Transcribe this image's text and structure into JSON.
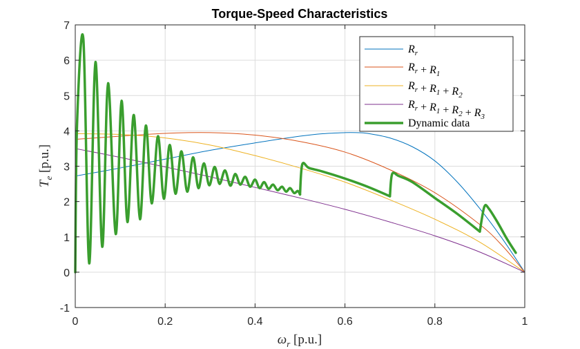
{
  "chart_data": {
    "type": "line",
    "title": "Torque-Speed Characteristics",
    "xlabel": {
      "symbol": "ω",
      "sub": "r",
      "unit": "[p.u.]"
    },
    "ylabel": {
      "symbol": "T",
      "sub": "e",
      "unit": "[p.u.]"
    },
    "xlim": [
      0,
      1
    ],
    "ylim": [
      -1,
      7
    ],
    "x_ticks": [
      0,
      0.2,
      0.4,
      0.6,
      0.8,
      1
    ],
    "x_tick_labels": [
      "0",
      "0.2",
      "0.4",
      "0.6",
      "0.8",
      "1"
    ],
    "y_ticks": [
      -1,
      0,
      1,
      2,
      3,
      4,
      5,
      6,
      7
    ],
    "y_tick_labels": [
      "-1",
      "0",
      "1",
      "2",
      "3",
      "4",
      "5",
      "6",
      "7"
    ],
    "grid": true,
    "legend_position": "top-right",
    "series": [
      {
        "name": "R_r",
        "legend_parts": [
          [
            "R",
            "r"
          ]
        ],
        "color": "#0072BD",
        "x": [
          0,
          0.1,
          0.2,
          0.3,
          0.4,
          0.5,
          0.55,
          0.6,
          0.625,
          0.65,
          0.7,
          0.75,
          0.8,
          0.85,
          0.9,
          0.95,
          1.0
        ],
        "y": [
          2.72,
          2.95,
          3.2,
          3.45,
          3.66,
          3.85,
          3.92,
          3.95,
          3.95,
          3.93,
          3.8,
          3.55,
          3.15,
          2.55,
          1.8,
          0.95,
          0
        ]
      },
      {
        "name": "R_r + R_1",
        "legend_parts": [
          [
            "R",
            "r"
          ],
          [
            "R",
            "1"
          ]
        ],
        "color": "#D95319",
        "x": [
          0,
          0.1,
          0.2,
          0.3,
          0.4,
          0.5,
          0.6,
          0.7,
          0.8,
          0.9,
          0.95,
          1.0
        ],
        "y": [
          3.76,
          3.85,
          3.93,
          3.95,
          3.88,
          3.7,
          3.4,
          2.9,
          2.25,
          1.35,
          0.75,
          0
        ]
      },
      {
        "name": "R_r + R_1 + R_2",
        "legend_parts": [
          [
            "R",
            "r"
          ],
          [
            "R",
            "1"
          ],
          [
            "R",
            "2"
          ]
        ],
        "color": "#EDB120",
        "x": [
          0,
          0.1,
          0.2,
          0.3,
          0.4,
          0.5,
          0.6,
          0.7,
          0.8,
          0.9,
          1.0
        ],
        "y": [
          3.92,
          3.9,
          3.8,
          3.6,
          3.3,
          2.95,
          2.55,
          2.05,
          1.5,
          0.85,
          0
        ]
      },
      {
        "name": "R_r + R_1 + R_2 + R_3",
        "legend_parts": [
          [
            "R",
            "r"
          ],
          [
            "R",
            "1"
          ],
          [
            "R",
            "2"
          ],
          [
            "R",
            "3"
          ]
        ],
        "color": "#7E2F8E",
        "x": [
          0,
          0.1,
          0.2,
          0.3,
          0.4,
          0.5,
          0.6,
          0.7,
          0.8,
          0.9,
          1.0
        ],
        "y": [
          3.5,
          3.25,
          2.98,
          2.7,
          2.4,
          2.1,
          1.78,
          1.42,
          1.03,
          0.57,
          0
        ]
      },
      {
        "name": "Dynamic data",
        "legend_parts": [],
        "color": "#3A9E2E",
        "thick": true,
        "oscillation": {
          "start_x": 0.0,
          "end_x": 0.5,
          "peaks": [
            [
              0.018,
              6.6
            ],
            [
              0.045,
              5.95
            ],
            [
              0.073,
              5.35
            ],
            [
              0.103,
              4.85
            ],
            [
              0.13,
              4.45
            ],
            [
              0.157,
              4.15
            ],
            [
              0.184,
              3.85
            ],
            [
              0.21,
              3.6
            ],
            [
              0.236,
              3.42
            ],
            [
              0.262,
              3.25
            ],
            [
              0.286,
              3.08
            ],
            [
              0.31,
              2.98
            ],
            [
              0.333,
              2.88
            ],
            [
              0.356,
              2.78
            ],
            [
              0.378,
              2.7
            ],
            [
              0.4,
              2.62
            ],
            [
              0.42,
              2.55
            ],
            [
              0.44,
              2.48
            ],
            [
              0.46,
              2.42
            ],
            [
              0.478,
              2.38
            ],
            [
              0.495,
              2.3
            ]
          ],
          "troughs": [
            [
              0.031,
              0.25
            ],
            [
              0.06,
              0.72
            ],
            [
              0.09,
              1.08
            ],
            [
              0.116,
              1.42
            ],
            [
              0.144,
              1.5
            ],
            [
              0.17,
              1.95
            ],
            [
              0.197,
              2.08
            ],
            [
              0.223,
              2.22
            ],
            [
              0.249,
              2.28
            ],
            [
              0.274,
              2.38
            ],
            [
              0.298,
              2.46
            ],
            [
              0.321,
              2.5
            ],
            [
              0.345,
              2.45
            ],
            [
              0.367,
              2.48
            ],
            [
              0.389,
              2.42
            ],
            [
              0.41,
              2.38
            ],
            [
              0.43,
              2.36
            ],
            [
              0.45,
              2.32
            ],
            [
              0.469,
              2.28
            ],
            [
              0.487,
              2.24
            ]
          ]
        },
        "segments": [
          {
            "x": [
              0.5,
              0.505,
              0.52,
              0.55,
              0.6,
              0.65,
              0.7
            ],
            "y": [
              2.2,
              3.05,
              2.95,
              2.85,
              2.65,
              2.42,
              2.15
            ]
          },
          {
            "x": [
              0.7,
              0.705,
              0.72,
              0.75,
              0.8,
              0.85,
              0.9
            ],
            "y": [
              2.15,
              2.78,
              2.72,
              2.55,
              2.1,
              1.65,
              1.15
            ]
          },
          {
            "x": [
              0.9,
              0.91,
              0.92,
              0.94,
              0.96,
              0.98
            ],
            "y": [
              1.15,
              1.85,
              1.8,
              1.4,
              0.95,
              0.55
            ]
          }
        ]
      }
    ]
  }
}
